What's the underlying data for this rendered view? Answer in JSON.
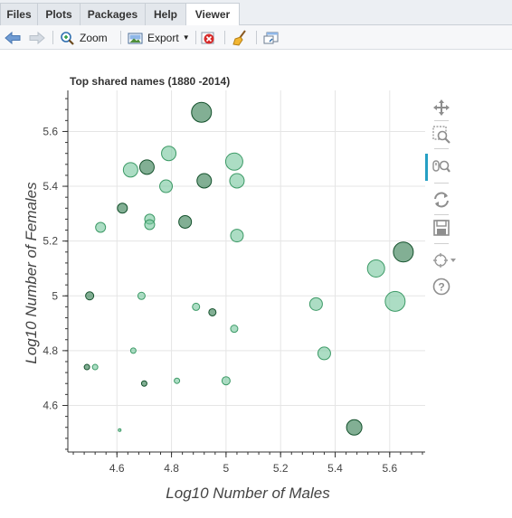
{
  "tabs": [
    {
      "label": "Files",
      "active": false
    },
    {
      "label": "Plots",
      "active": false
    },
    {
      "label": "Packages",
      "active": false
    },
    {
      "label": "Help",
      "active": false
    },
    {
      "label": "Viewer",
      "active": true
    }
  ],
  "toolbar": {
    "zoom_label": "Zoom",
    "export_label": "Export"
  },
  "chart_data": {
    "type": "scatter",
    "title": "Top shared names (1880 -2014)",
    "xlabel": "Log10 Number of Males",
    "ylabel": "Log10 Number of Females",
    "xlim": [
      4.42,
      5.73
    ],
    "ylim": [
      4.43,
      5.75
    ],
    "xticks": [
      "4.6",
      "4.8",
      "5",
      "5.2",
      "5.4",
      "5.6"
    ],
    "yticks": [
      "4.6",
      "4.8",
      "5",
      "5.2",
      "5.4",
      "5.6"
    ],
    "grid": true,
    "points": [
      {
        "x": 4.61,
        "y": 4.51,
        "s": 1.5
      },
      {
        "x": 4.49,
        "y": 4.74,
        "s": 3
      },
      {
        "x": 4.52,
        "y": 4.74,
        "s": 3
      },
      {
        "x": 4.66,
        "y": 4.8,
        "s": 3
      },
      {
        "x": 4.7,
        "y": 4.68,
        "s": 3
      },
      {
        "x": 4.82,
        "y": 4.69,
        "s": 3
      },
      {
        "x": 5.0,
        "y": 4.69,
        "s": 4.5
      },
      {
        "x": 4.5,
        "y": 5.0,
        "s": 4.5
      },
      {
        "x": 4.69,
        "y": 5.0,
        "s": 4
      },
      {
        "x": 4.89,
        "y": 4.96,
        "s": 4
      },
      {
        "x": 4.95,
        "y": 4.94,
        "s": 4
      },
      {
        "x": 5.03,
        "y": 4.88,
        "s": 4
      },
      {
        "x": 4.54,
        "y": 5.25,
        "s": 5.5
      },
      {
        "x": 4.62,
        "y": 5.32,
        "s": 5.5
      },
      {
        "x": 4.72,
        "y": 5.28,
        "s": 5.5
      },
      {
        "x": 4.72,
        "y": 5.26,
        "s": 5.5
      },
      {
        "x": 4.85,
        "y": 5.27,
        "s": 7
      },
      {
        "x": 5.04,
        "y": 5.22,
        "s": 7
      },
      {
        "x": 4.65,
        "y": 5.46,
        "s": 8
      },
      {
        "x": 4.71,
        "y": 5.47,
        "s": 8
      },
      {
        "x": 4.78,
        "y": 5.4,
        "s": 7
      },
      {
        "x": 4.79,
        "y": 5.52,
        "s": 8
      },
      {
        "x": 4.92,
        "y": 5.42,
        "s": 8
      },
      {
        "x": 5.04,
        "y": 5.42,
        "s": 8
      },
      {
        "x": 5.03,
        "y": 5.49,
        "s": 9.5
      },
      {
        "x": 4.91,
        "y": 5.67,
        "s": 11
      },
      {
        "x": 5.33,
        "y": 4.97,
        "s": 7
      },
      {
        "x": 5.36,
        "y": 4.79,
        "s": 7
      },
      {
        "x": 5.47,
        "y": 4.52,
        "s": 8.5
      },
      {
        "x": 5.55,
        "y": 5.1,
        "s": 9.5
      },
      {
        "x": 5.62,
        "y": 4.98,
        "s": 11
      },
      {
        "x": 5.65,
        "y": 5.16,
        "s": 11
      }
    ]
  },
  "colors": {
    "point_light": "#74c69d",
    "point_dark": "#1b6e3c",
    "grid": "#e5e5e5",
    "active_tool": "#26a0c4"
  },
  "plot_tools": [
    {
      "name": "pan-icon",
      "active": false
    },
    {
      "name": "box-zoom-icon",
      "active": false
    },
    {
      "name": "wheel-zoom-icon",
      "active": true
    },
    {
      "name": "reset-icon",
      "active": false
    },
    {
      "name": "save-icon",
      "active": false
    },
    {
      "name": "hover-icon",
      "active": false
    },
    {
      "name": "help-icon",
      "active": false
    }
  ]
}
